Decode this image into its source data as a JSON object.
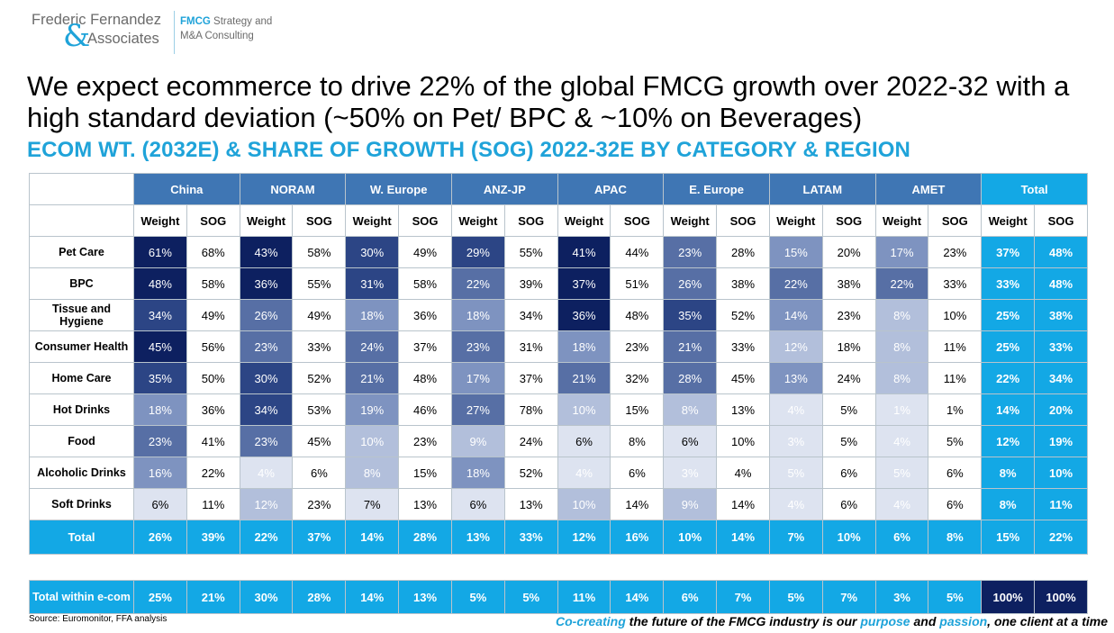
{
  "logo": {
    "name_line1": "Frederic Fernandez",
    "ampersand": "&",
    "name_line2": "Associates",
    "tag_accent": "FMCG",
    "tag_line1_rest": " Strategy and",
    "tag_line2": "M&A Consulting"
  },
  "title": "We expect ecommerce to drive 22% of the global FMCG growth over 2022-32 with a high standard deviation (~50% on Pet/ BPC & ~10% on Beverages)",
  "subtitle": "ECOM WT. (2032E) & SHARE OF GROWTH (SOG) 2022-32E BY CATEGORY & REGION",
  "source": "Source: Euromonitor, FFA analysis",
  "footer": {
    "part1": "Co-creating",
    "part2": " the future of the FMCG industry is our ",
    "part3": "purpose",
    "part4": " and ",
    "part5": "passion",
    "part6": ", one client at a time"
  },
  "colors": {
    "level1": "#dde3f0",
    "level2": "#b2bfdb",
    "level3": "#7e93c0",
    "level4": "#576fa5",
    "level5": "#2c4585",
    "level6": "#0d2060",
    "total_blue": "#13a8e5",
    "header_blue": "#3f76b4"
  },
  "chart_data": {
    "type": "table",
    "regions": [
      "China",
      "NORAM",
      "W. Europe",
      "ANZ-JP",
      "APAC",
      "E. Europe",
      "LATAM",
      "AMET"
    ],
    "total_label": "Total",
    "metrics": [
      "Weight",
      "SOG"
    ],
    "rows": [
      {
        "label": "Pet Care",
        "values": [
          [
            61,
            68
          ],
          [
            43,
            58
          ],
          [
            30,
            49
          ],
          [
            29,
            55
          ],
          [
            41,
            44
          ],
          [
            23,
            28
          ],
          [
            15,
            20
          ],
          [
            17,
            23
          ]
        ],
        "total": [
          37,
          48
        ]
      },
      {
        "label": "BPC",
        "values": [
          [
            48,
            58
          ],
          [
            36,
            55
          ],
          [
            31,
            58
          ],
          [
            22,
            39
          ],
          [
            37,
            51
          ],
          [
            26,
            38
          ],
          [
            22,
            38
          ],
          [
            22,
            33
          ]
        ],
        "total": [
          33,
          48
        ]
      },
      {
        "label": "Tissue and Hygiene",
        "values": [
          [
            34,
            49
          ],
          [
            26,
            49
          ],
          [
            18,
            36
          ],
          [
            18,
            34
          ],
          [
            36,
            48
          ],
          [
            35,
            52
          ],
          [
            14,
            23
          ],
          [
            8,
            10
          ]
        ],
        "total": [
          25,
          38
        ]
      },
      {
        "label": "Consumer Health",
        "values": [
          [
            45,
            56
          ],
          [
            23,
            33
          ],
          [
            24,
            37
          ],
          [
            23,
            31
          ],
          [
            18,
            23
          ],
          [
            21,
            33
          ],
          [
            12,
            18
          ],
          [
            8,
            11
          ]
        ],
        "total": [
          25,
          33
        ]
      },
      {
        "label": "Home Care",
        "values": [
          [
            35,
            50
          ],
          [
            30,
            52
          ],
          [
            21,
            48
          ],
          [
            17,
            37
          ],
          [
            21,
            32
          ],
          [
            28,
            45
          ],
          [
            13,
            24
          ],
          [
            8,
            11
          ]
        ],
        "total": [
          22,
          34
        ]
      },
      {
        "label": "Hot Drinks",
        "values": [
          [
            18,
            36
          ],
          [
            34,
            53
          ],
          [
            19,
            46
          ],
          [
            27,
            78
          ],
          [
            10,
            15
          ],
          [
            8,
            13
          ],
          [
            4,
            5
          ],
          [
            1,
            1
          ]
        ],
        "total": [
          14,
          20
        ]
      },
      {
        "label": "Food",
        "values": [
          [
            23,
            41
          ],
          [
            23,
            45
          ],
          [
            10,
            23
          ],
          [
            9,
            24
          ],
          [
            6,
            8
          ],
          [
            6,
            10
          ],
          [
            3,
            5
          ],
          [
            4,
            5
          ]
        ],
        "total": [
          12,
          19
        ]
      },
      {
        "label": "Alcoholic Drinks",
        "values": [
          [
            16,
            22
          ],
          [
            4,
            6
          ],
          [
            8,
            15
          ],
          [
            18,
            52
          ],
          [
            4,
            6
          ],
          [
            3,
            4
          ],
          [
            5,
            6
          ],
          [
            5,
            6
          ]
        ],
        "total": [
          8,
          10
        ]
      },
      {
        "label": "Soft Drinks",
        "values": [
          [
            6,
            11
          ],
          [
            12,
            23
          ],
          [
            7,
            13
          ],
          [
            6,
            13
          ],
          [
            10,
            14
          ],
          [
            9,
            14
          ],
          [
            4,
            6
          ],
          [
            4,
            6
          ]
        ],
        "total": [
          8,
          11
        ]
      }
    ],
    "total_row": {
      "label": "Total",
      "values": [
        [
          26,
          39
        ],
        [
          22,
          37
        ],
        [
          14,
          28
        ],
        [
          13,
          33
        ],
        [
          12,
          16
        ],
        [
          10,
          14
        ],
        [
          7,
          10
        ],
        [
          6,
          8
        ]
      ],
      "total": [
        15,
        22
      ]
    },
    "within_ecom_row": {
      "label": "Total within e-com",
      "values": [
        [
          25,
          21
        ],
        [
          30,
          28
        ],
        [
          14,
          13
        ],
        [
          5,
          5
        ],
        [
          11,
          14
        ],
        [
          6,
          7
        ],
        [
          5,
          7
        ],
        [
          3,
          5
        ]
      ],
      "total": [
        100,
        100
      ]
    },
    "unit": "%"
  }
}
